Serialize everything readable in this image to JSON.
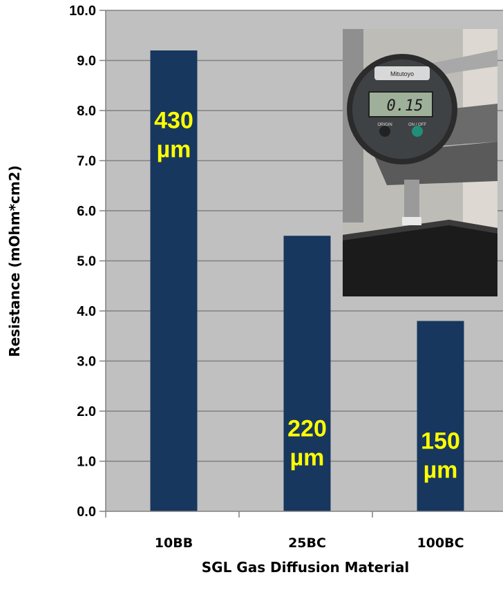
{
  "chart_data": {
    "type": "bar",
    "title": "",
    "xlabel": "SGL Gas Diffusion Material",
    "ylabel": "Resistance (mOhm*cm2)",
    "ylim": [
      0,
      10
    ],
    "yticks": [
      "0.0",
      "1.0",
      "2.0",
      "3.0",
      "4.0",
      "5.0",
      "6.0",
      "7.0",
      "8.0",
      "9.0",
      "10.0"
    ],
    "grid": true,
    "categories": [
      "10BB",
      "25BC",
      "100BC"
    ],
    "values": [
      9.2,
      5.5,
      3.8
    ],
    "bar_labels": [
      {
        "line1": "430",
        "line2": "µm"
      },
      {
        "line1": "220",
        "line2": "µm"
      },
      {
        "line1": "150",
        "line2": "µm"
      }
    ],
    "colors": {
      "bar": "#17375e",
      "plot_bg": "#c0c0c0",
      "gridline": "#808080",
      "label": "#ffff00"
    }
  },
  "inset_photo": {
    "display_readout": "0.15",
    "brand": "Mitutoyo",
    "button_left": "ORIGIN",
    "button_right": "ON / OFF"
  }
}
